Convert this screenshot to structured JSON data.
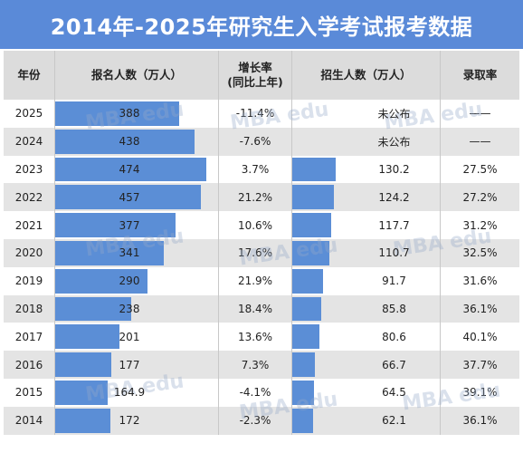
{
  "title": "2014年-2025年研究生入学考试报考数据",
  "headers": {
    "year": "年份",
    "applicants": "报名人数（万人）",
    "growth_line1": "增长率",
    "growth_line2": "(同比上年)",
    "enrolled": "招生人数（万人）",
    "rate": "录取率"
  },
  "rows": [
    {
      "year": "2025",
      "applicants": "388",
      "growth": "-11.4%",
      "enrolled": "未公布",
      "rate": "——"
    },
    {
      "year": "2024",
      "applicants": "438",
      "growth": "-7.6%",
      "enrolled": "未公布",
      "rate": "——"
    },
    {
      "year": "2023",
      "applicants": "474",
      "growth": "3.7%",
      "enrolled": "130.2",
      "rate": "27.5%"
    },
    {
      "year": "2022",
      "applicants": "457",
      "growth": "21.2%",
      "enrolled": "124.2",
      "rate": "27.2%"
    },
    {
      "year": "2021",
      "applicants": "377",
      "growth": "10.6%",
      "enrolled": "117.7",
      "rate": "31.2%"
    },
    {
      "year": "2020",
      "applicants": "341",
      "growth": "17.6%",
      "enrolled": "110.7",
      "rate": "32.5%"
    },
    {
      "year": "2019",
      "applicants": "290",
      "growth": "21.9%",
      "enrolled": "91.7",
      "rate": "31.6%"
    },
    {
      "year": "2018",
      "applicants": "238",
      "growth": "18.4%",
      "enrolled": "85.8",
      "rate": "36.1%"
    },
    {
      "year": "2017",
      "applicants": "201",
      "growth": "13.6%",
      "enrolled": "80.6",
      "rate": "40.1%"
    },
    {
      "year": "2016",
      "applicants": "177",
      "growth": "7.3%",
      "enrolled": "66.7",
      "rate": "37.7%"
    },
    {
      "year": "2015",
      "applicants": "164.9",
      "growth": "-4.1%",
      "enrolled": "64.5",
      "rate": "39.1%"
    },
    {
      "year": "2014",
      "applicants": "172",
      "growth": "-2.3%",
      "enrolled": "62.1",
      "rate": "36.1%"
    }
  ],
  "watermark_text": "MBA edu",
  "colors": {
    "title_bg": "#5a8ad8",
    "bar": "#5b8ed6",
    "header_bg": "#dcdcdc",
    "stripe": "#e4e4e4"
  },
  "chart_data": {
    "type": "table",
    "title": "2014年-2025年研究生入学考试报考数据",
    "columns": [
      "年份",
      "报名人数（万人）",
      "增长率(同比上年)",
      "招生人数（万人）",
      "录取率"
    ],
    "years": [
      "2025",
      "2024",
      "2023",
      "2022",
      "2021",
      "2020",
      "2019",
      "2018",
      "2017",
      "2016",
      "2015",
      "2014"
    ],
    "applicants": [
      388,
      438,
      474,
      457,
      377,
      341,
      290,
      238,
      201,
      177,
      164.9,
      172
    ],
    "growth_pct": [
      -11.4,
      -7.6,
      3.7,
      21.2,
      10.6,
      17.6,
      21.9,
      18.4,
      13.6,
      7.3,
      -4.1,
      -2.3
    ],
    "enrolled": [
      null,
      null,
      130.2,
      124.2,
      117.7,
      110.7,
      91.7,
      85.8,
      80.6,
      66.7,
      64.5,
      62.1
    ],
    "admission_rate_pct": [
      null,
      null,
      27.5,
      27.2,
      31.2,
      32.5,
      31.6,
      36.1,
      40.1,
      37.7,
      39.1,
      36.1
    ],
    "applicants_scale_max": 474,
    "enrolled_scale_max": 130.2
  }
}
